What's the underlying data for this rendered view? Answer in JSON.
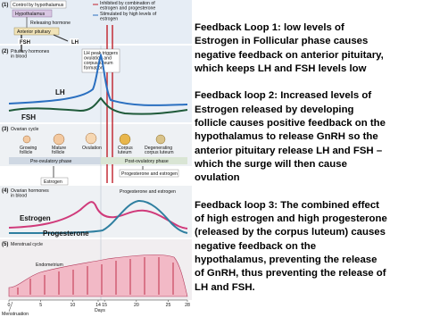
{
  "figure": {
    "panel1": {
      "number": "(1)",
      "title": "Control by hypothalamus",
      "hypothalamus": "Hypothalamus",
      "inhibited": [
        "Inhibited by combination of",
        "estrogen and progesterone"
      ],
      "stimulated": [
        "Stimulated by high levels of",
        "estrogen"
      ],
      "releasing": "Releasing hormone",
      "pituitary": "Anterior pituitary",
      "fsh": "FSH",
      "lh": "LH"
    },
    "panel2": {
      "number": "(2)",
      "title": [
        "Pituitary hormones",
        "in blood"
      ],
      "note": [
        "LH peak triggers",
        "ovulation and",
        "corpus luteum",
        "formation"
      ],
      "lh": "LH",
      "fsh": "FSH"
    },
    "panel3": {
      "number": "(3)",
      "title": "Ovarian cycle",
      "stages": [
        [
          "Growing",
          "follicle"
        ],
        [
          "Mature",
          "follicle"
        ],
        [
          "Ovulation"
        ],
        [
          "Corpus",
          "luteum"
        ],
        [
          "Degenerating",
          "corpus luteum"
        ]
      ],
      "pre": "Pre-ovulatory phase",
      "post": "Post-ovulatory phase",
      "estrogen": "Estrogen",
      "prog": "Progesterone and estrogen"
    },
    "panel4": {
      "number": "(4)",
      "title": [
        "Ovarian hormones",
        "in blood"
      ],
      "estrogen": "Estrogen",
      "prog_est": "Progesterone and estrogen",
      "progesterone": "Progesterone"
    },
    "panel5": {
      "number": "(5)",
      "title": "Menstrual cycle",
      "endometrium": "Endometrium",
      "days": [
        0,
        5,
        10,
        14,
        15,
        20,
        25,
        28
      ],
      "axis": "Days",
      "menstruation": "Menstruation"
    }
  },
  "text": {
    "paragraphs": [
      [
        "Feedback Loop 1: low levels of",
        "Estrogen in Follicular phase causes",
        "negative feedback on anterior pituitary,",
        "which keeps LH and FSH levels low"
      ],
      [
        "Feedback loop 2: Increased levels of",
        "Estrogen released by developing",
        "follicle causes positive feedback on the",
        "hypothalamus to release GnRH so the",
        "anterior pituitary release LH and FSH –",
        "which the surge will then cause",
        "ovulation"
      ],
      [
        "Feedback loop 3: The combined effect",
        "of high estrogen and high progesterone",
        "(released by the corpus luteum) causes",
        "negative feedback on the",
        "hypothalamus, preventing the release",
        "of GnRH, thus preventing the release of",
        "LH and FSH."
      ]
    ]
  }
}
